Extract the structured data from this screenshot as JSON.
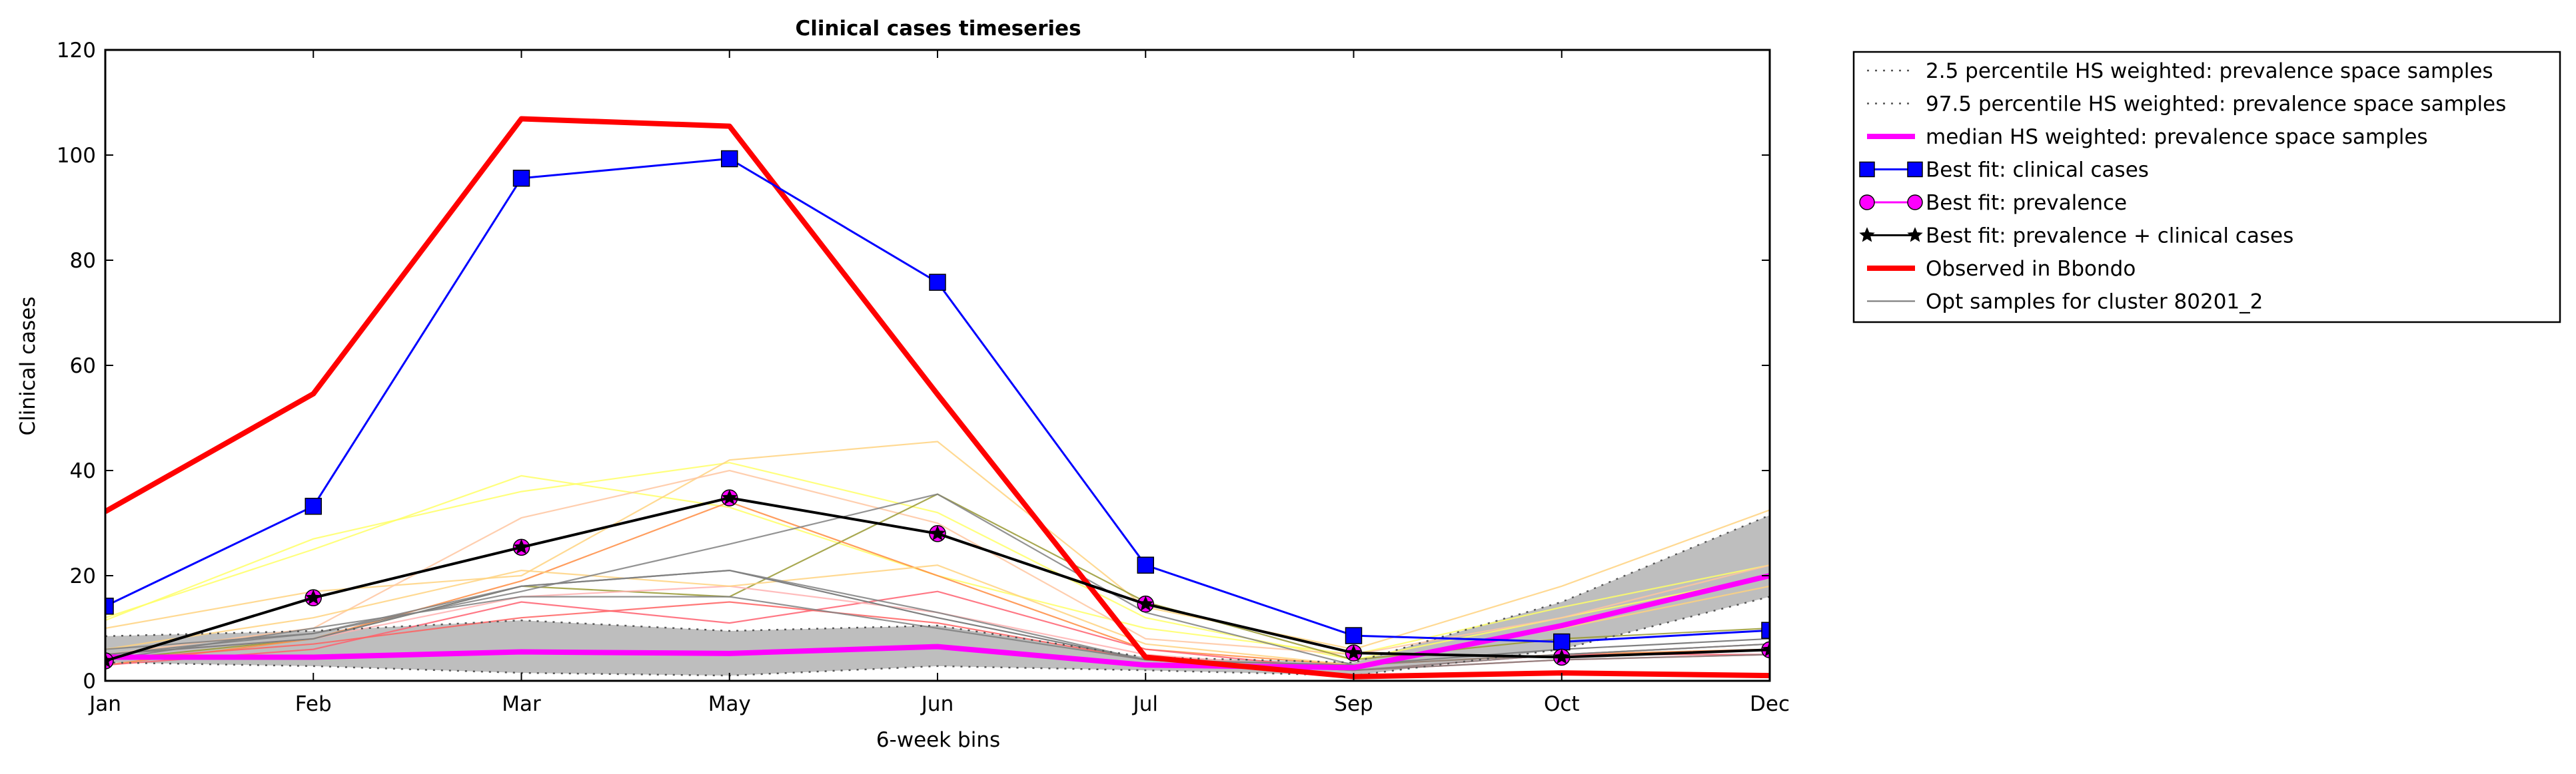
{
  "chart_data": {
    "type": "line",
    "title": "Clinical cases timeseries",
    "xlabel": "6-week bins",
    "ylabel": "Clinical cases",
    "categories": [
      "Jan",
      "Feb",
      "Mar",
      "May",
      "Jun",
      "Jul",
      "Sep",
      "Oct",
      "Dec"
    ],
    "ylim": [
      0,
      120
    ],
    "yticks": [
      0,
      20,
      40,
      60,
      80,
      100,
      120
    ],
    "grid": false,
    "legend_position": "outside-right",
    "band": {
      "lower": [
        3.5,
        2.8,
        1.5,
        1.0,
        2.8,
        2.0,
        1.0,
        6.0,
        16.0
      ],
      "upper": [
        8.5,
        9.5,
        11.5,
        9.5,
        10.5,
        4.5,
        3.5,
        15.0,
        31.5
      ],
      "color": "#bebebe"
    },
    "series": [
      {
        "name": "2.5 percentile HS weighted: prevalence space samples",
        "values": [
          3.5,
          2.8,
          1.5,
          1.0,
          2.8,
          2.0,
          1.0,
          6.0,
          16.0
        ],
        "color": "#555555",
        "style": "dotted"
      },
      {
        "name": "97.5 percentile HS weighted: prevalence space samples",
        "values": [
          8.5,
          9.5,
          11.5,
          9.5,
          10.5,
          4.5,
          3.5,
          15.0,
          31.5
        ],
        "color": "#555555",
        "style": "dotted"
      },
      {
        "name": "median HS weighted: prevalence space samples",
        "values": [
          4.5,
          4.5,
          5.5,
          5.2,
          6.5,
          3.0,
          2.5,
          10.5,
          20.0
        ],
        "color": "#ff00ff",
        "style": "thick"
      },
      {
        "name": "Best fit: clinical cases",
        "values": [
          14.2,
          33.2,
          95.6,
          99.3,
          75.8,
          22.0,
          8.6,
          7.4,
          9.6
        ],
        "color": "#0000ff",
        "marker": "square"
      },
      {
        "name": "Best fit: prevalence",
        "values": [
          3.8,
          15.8,
          25.4,
          34.8,
          28.0,
          14.6,
          5.3,
          4.5,
          5.9
        ],
        "color": "#ff00ff",
        "marker": "circle"
      },
      {
        "name": "Best fit: prevalence + clinical cases",
        "values": [
          3.8,
          15.8,
          25.4,
          34.8,
          28.0,
          14.6,
          5.3,
          4.5,
          5.9
        ],
        "color": "#000000",
        "marker": "star"
      },
      {
        "name": "Observed in Bbondo",
        "values": [
          32.2,
          54.6,
          106.9,
          105.5,
          54.5,
          4.5,
          0.8,
          1.5,
          1.0
        ],
        "color": "#ff0000",
        "style": "thick"
      },
      {
        "name": "Opt samples for cluster 80201_2",
        "values": [
          5.0,
          8.0,
          18.0,
          21.0,
          12.0,
          4.0,
          3.0,
          6.0,
          8.0
        ],
        "color": "#808080",
        "style": "thin"
      }
    ],
    "opt_samples": [
      {
        "values": [
          12.0,
          25.0,
          39.0,
          33.0,
          20.0,
          10.0,
          5.0,
          14.0,
          22.0
        ],
        "color": "#ffff66"
      },
      {
        "values": [
          11.5,
          27.0,
          36.0,
          41.5,
          32.0,
          12.0,
          4.0,
          12.0,
          20.0
        ],
        "color": "#ffff66"
      },
      {
        "values": [
          10.0,
          17.0,
          20.0,
          42.0,
          45.5,
          14.0,
          6.0,
          18.0,
          32.5
        ],
        "color": "#ffd27f"
      },
      {
        "values": [
          5.0,
          10.0,
          31.0,
          40.0,
          30.0,
          8.0,
          5.0,
          12.0,
          22.0
        ],
        "color": "#ffc6a0"
      },
      {
        "values": [
          4.0,
          8.0,
          18.0,
          16.0,
          35.5,
          15.0,
          4.0,
          8.0,
          10.0
        ],
        "color": "#999933"
      },
      {
        "values": [
          3.0,
          8.0,
          19.0,
          34.0,
          20.0,
          6.0,
          3.0,
          5.0,
          6.0
        ],
        "color": "#ff8c42"
      },
      {
        "values": [
          3.0,
          6.0,
          15.0,
          11.0,
          17.0,
          6.0,
          2.0,
          5.0,
          5.0
        ],
        "color": "#ff6070"
      },
      {
        "values": [
          4.0,
          7.0,
          12.0,
          15.0,
          11.0,
          4.0,
          2.0,
          4.0,
          5.0
        ],
        "color": "#ff6060"
      },
      {
        "values": [
          5.0,
          8.0,
          16.0,
          18.0,
          13.0,
          5.0,
          2.0,
          5.0,
          7.0
        ],
        "color": "#ffb0b0"
      },
      {
        "values": [
          6.0,
          12.0,
          21.0,
          18.0,
          22.0,
          7.0,
          3.0,
          10.0,
          18.0
        ],
        "color": "#ffd27f"
      },
      {
        "values": [
          6.0,
          9.0,
          18.0,
          21.0,
          13.0,
          4.0,
          2.0,
          5.0,
          7.0
        ],
        "color": "#808080"
      },
      {
        "values": [
          5.0,
          9.0,
          17.0,
          26.0,
          35.5,
          13.0,
          3.0,
          5.0,
          7.0
        ],
        "color": "#808080"
      },
      {
        "values": [
          4.0,
          10.0,
          16.0,
          16.0,
          10.0,
          4.0,
          2.0,
          4.0,
          5.0
        ],
        "color": "#808080"
      }
    ]
  }
}
